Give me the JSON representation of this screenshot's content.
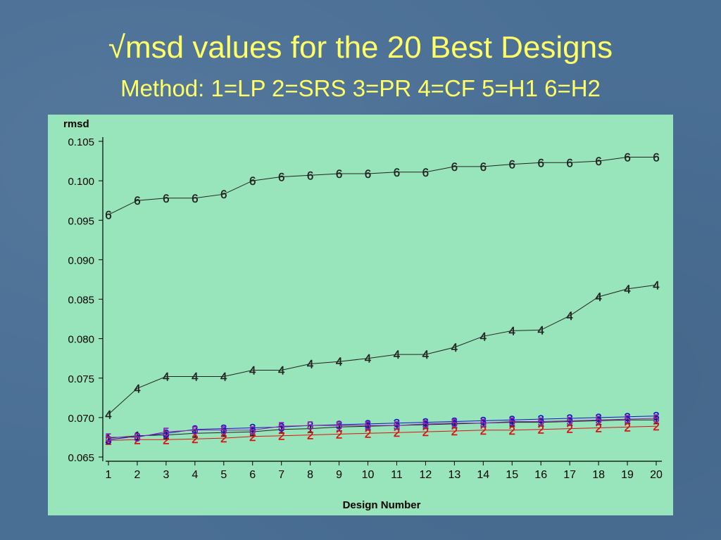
{
  "slide": {
    "title": "√msd values for the 20 Best Designs",
    "subtitle": "Method: 1=LP  2=SRS  3=PR  4=CF  5=H1  6=H2"
  },
  "chart_data": {
    "type": "line",
    "xlabel": "Design Number",
    "ylabel": "rmsd",
    "x": [
      1,
      2,
      3,
      4,
      5,
      6,
      7,
      8,
      9,
      10,
      11,
      12,
      13,
      14,
      15,
      16,
      17,
      18,
      19,
      20
    ],
    "xticks": [
      "1",
      "2",
      "3",
      "4",
      "5",
      "6",
      "7",
      "8",
      "9",
      "10",
      "11",
      "12",
      "13",
      "14",
      "15",
      "16",
      "17",
      "18",
      "19",
      "20"
    ],
    "ylim": [
      0.065,
      0.105
    ],
    "yticks": [
      "0.065",
      "0.070",
      "0.075",
      "0.080",
      "0.085",
      "0.090",
      "0.095",
      "0.100",
      "0.105"
    ],
    "grid": false,
    "legend": "none",
    "series": [
      {
        "name": "1",
        "color": "#222222",
        "values": [
          0.0674,
          0.0677,
          0.0678,
          0.068,
          0.0681,
          0.0682,
          0.0685,
          0.0686,
          0.0688,
          0.0689,
          0.069,
          0.0691,
          0.0692,
          0.0693,
          0.0694,
          0.0694,
          0.0695,
          0.0696,
          0.0697,
          0.0697
        ]
      },
      {
        "name": "2",
        "color": "#dd1111",
        "values": [
          0.0671,
          0.0672,
          0.0672,
          0.0673,
          0.0674,
          0.0676,
          0.0677,
          0.0678,
          0.0679,
          0.068,
          0.0681,
          0.0682,
          0.0683,
          0.0684,
          0.0684,
          0.0685,
          0.0686,
          0.0687,
          0.0688,
          0.0689
        ]
      },
      {
        "name": "3",
        "color": "#1111cc",
        "values": [
          0.0672,
          0.0676,
          0.068,
          0.0685,
          0.0686,
          0.0687,
          0.0688,
          0.069,
          0.0691,
          0.0692,
          0.0693,
          0.0694,
          0.0695,
          0.0696,
          0.0697,
          0.0698,
          0.0699,
          0.07,
          0.0701,
          0.0702
        ]
      },
      {
        "name": "4",
        "color": "#222222",
        "values": [
          0.0704,
          0.0737,
          0.0752,
          0.0752,
          0.0752,
          0.076,
          0.076,
          0.0768,
          0.0771,
          0.0775,
          0.078,
          0.078,
          0.0789,
          0.0803,
          0.081,
          0.0811,
          0.0829,
          0.0853,
          0.0863,
          0.0868
        ]
      },
      {
        "name": "5",
        "color": "#9922aa",
        "values": [
          0.0675,
          0.0675,
          0.0682,
          0.0684,
          0.0684,
          0.0684,
          0.0689,
          0.069,
          0.069,
          0.069,
          0.069,
          0.0692,
          0.0693,
          0.0693,
          0.0695,
          0.0695,
          0.0696,
          0.0697,
          0.0698,
          0.0699
        ]
      },
      {
        "name": "6",
        "color": "#222222",
        "values": [
          0.0957,
          0.0975,
          0.0978,
          0.0978,
          0.0983,
          0.1,
          0.1005,
          0.1007,
          0.1009,
          0.1009,
          0.1011,
          0.1011,
          0.1018,
          0.1018,
          0.1021,
          0.1023,
          0.1023,
          0.1025,
          0.103,
          0.103
        ]
      }
    ]
  }
}
